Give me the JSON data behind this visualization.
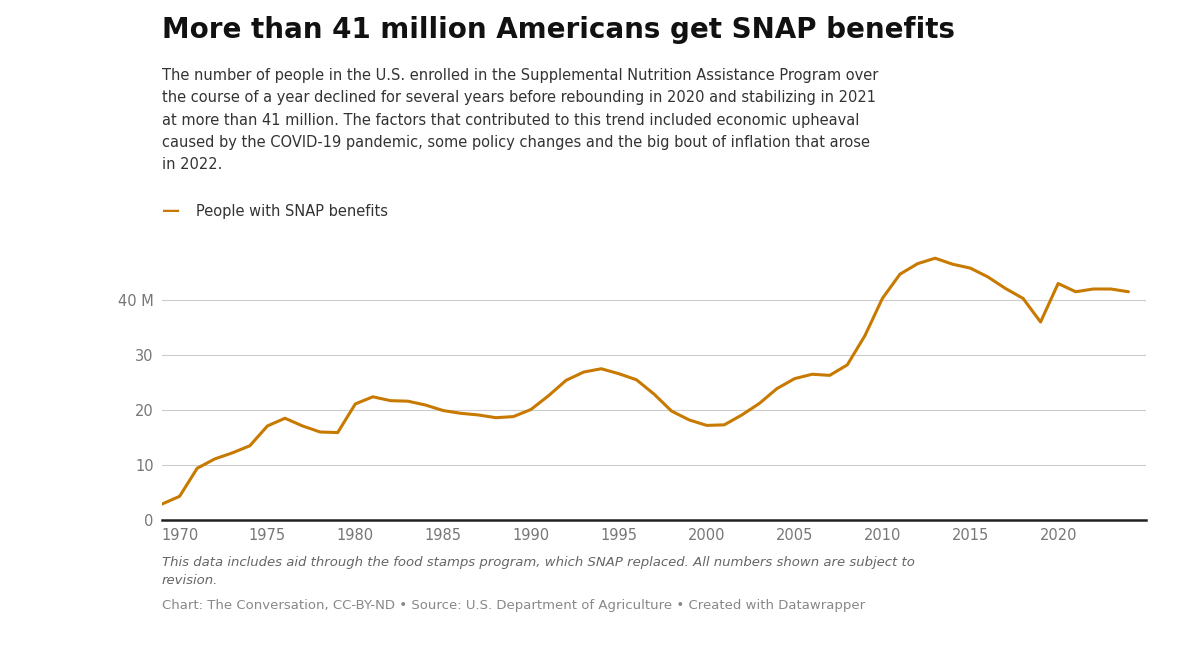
{
  "title": "More than 41 million Americans get SNAP benefits",
  "subtitle": "The number of people in the U.S. enrolled in the Supplemental Nutrition Assistance Program over\nthe course of a year declined for several years before rebounding in 2020 and stabilizing in 2021\nat more than 41 million. The factors that contributed to this trend included economic upheaval\ncaused by the COVID-19 pandemic, some policy changes and the big bout of inflation that arose\nin 2022.",
  "legend_label": "People with SNAP benefits",
  "footnote": "This data includes aid through the food stamps program, which SNAP replaced. All numbers shown are subject to\nrevision.",
  "source": "Chart: The Conversation, CC-BY-ND • Source: U.S. Department of Agriculture • Created with Datawrapper",
  "line_color": "#C87900",
  "background_color": "#ffffff",
  "years": [
    1969,
    1970,
    1971,
    1972,
    1973,
    1974,
    1975,
    1976,
    1977,
    1978,
    1979,
    1980,
    1981,
    1982,
    1983,
    1984,
    1985,
    1986,
    1987,
    1988,
    1989,
    1990,
    1991,
    1992,
    1993,
    1994,
    1995,
    1996,
    1997,
    1998,
    1999,
    2000,
    2001,
    2002,
    2003,
    2004,
    2005,
    2006,
    2007,
    2008,
    2009,
    2010,
    2011,
    2012,
    2013,
    2014,
    2015,
    2016,
    2017,
    2018,
    2019,
    2020,
    2021,
    2022,
    2023,
    2024
  ],
  "values": [
    2.9,
    4.3,
    9.4,
    11.1,
    12.2,
    13.5,
    17.1,
    18.5,
    17.1,
    16.0,
    15.9,
    21.1,
    22.4,
    21.7,
    21.6,
    20.9,
    19.9,
    19.4,
    19.1,
    18.6,
    18.8,
    20.1,
    22.6,
    25.4,
    26.9,
    27.5,
    26.6,
    25.5,
    22.9,
    19.8,
    18.2,
    17.2,
    17.3,
    19.1,
    21.2,
    23.9,
    25.7,
    26.5,
    26.3,
    28.2,
    33.5,
    40.3,
    44.7,
    46.6,
    47.6,
    46.5,
    45.8,
    44.2,
    42.1,
    40.3,
    36.0,
    43.0,
    41.5,
    42.0,
    42.0,
    41.5
  ],
  "yticks": [
    0,
    10,
    20,
    30,
    40
  ],
  "ytick_labels": [
    "0",
    "10",
    "20",
    "30",
    "40 M"
  ],
  "xticks": [
    1970,
    1975,
    1980,
    1985,
    1990,
    1995,
    2000,
    2005,
    2010,
    2015,
    2020
  ],
  "ylim": [
    0,
    52
  ],
  "xlim": [
    1969,
    2025
  ]
}
